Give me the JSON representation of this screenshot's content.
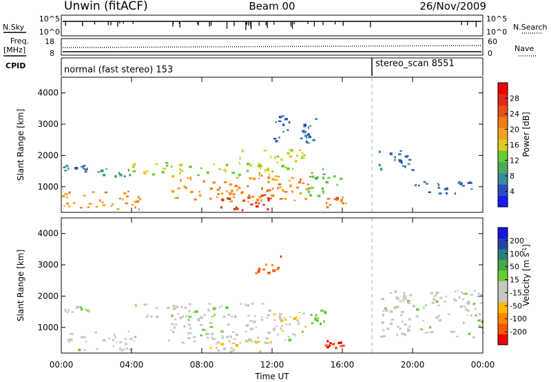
{
  "header": {
    "title": "Unwin (fitACF)",
    "beam": "Beam 00",
    "date": "26/Nov/2009"
  },
  "strip_labels": {
    "nsky": "N.Sky",
    "nsearch": "N.Search",
    "freq_line1": "Freq.",
    "freq_line2": "[MHz]",
    "nave": "Nave",
    "cpid": "CPID"
  },
  "strip_ticks": {
    "noise_left_top": "10^5",
    "noise_left_bottom": "10^0",
    "noise_right_top": "10^5",
    "noise_right_bottom": "10^0",
    "freq_left_top": "18",
    "freq_left_bottom": "8",
    "nave_right_top": "60",
    "nave_right_bottom": "0"
  },
  "cpid": {
    "segment1": "normal (fast stereo) 153",
    "segment2": "stereo_scan 8551"
  },
  "colors": {
    "power": [
      "#1a1aff",
      "#2a50b8",
      "#3a8a9a",
      "#4caa5c",
      "#66cc33",
      "#ddcc22",
      "#f5a020",
      "#f07a18",
      "#e8501a",
      "#e02a1a",
      "#ee0000"
    ],
    "velocity": [
      "#ee0000",
      "#ff5500",
      "#ff8800",
      "#ffbb00",
      "#c8c8c0",
      "#c8c8c0",
      "#66cc33",
      "#44aa44",
      "#2e7d7d",
      "#2244aa",
      "#1515dd"
    ],
    "grey": "#c8c8c0"
  },
  "chart_data": [
    {
      "type": "heatmap",
      "title": "",
      "xlabel": "",
      "ylabel": "Slant Range [km]",
      "xlim": [
        "00:00",
        "24:00"
      ],
      "ylim": [
        180,
        4500
      ],
      "y_ticks": [
        "1000",
        "2000",
        "3000",
        "4000"
      ],
      "colorbar": {
        "label": "Power [dB]",
        "range": [
          0,
          32
        ],
        "ticks": [
          "4",
          "8",
          "12",
          "16",
          "20",
          "24",
          "28"
        ]
      },
      "regions": [
        {
          "t0": 0.0,
          "t1": 4.5,
          "r0": 300,
          "r1": 900,
          "value": 20
        },
        {
          "t0": 0.0,
          "t1": 1.5,
          "r0": 1500,
          "r1": 1700,
          "value": 7
        },
        {
          "t0": 2.0,
          "t1": 4.0,
          "r0": 1350,
          "r1": 1600,
          "value": 8
        },
        {
          "t0": 4.0,
          "t1": 12.0,
          "r0": 1350,
          "r1": 1800,
          "value": 15
        },
        {
          "t0": 6.0,
          "t1": 14.0,
          "r0": 500,
          "r1": 1400,
          "value": 20
        },
        {
          "t0": 9.0,
          "t1": 12.0,
          "r0": 250,
          "r1": 800,
          "value": 27
        },
        {
          "t0": 10.0,
          "t1": 14.0,
          "r0": 1600,
          "r1": 2200,
          "value": 15
        },
        {
          "t0": 12.0,
          "t1": 14.5,
          "r0": 2400,
          "r1": 3300,
          "value": 6
        },
        {
          "t0": 14.0,
          "t1": 16.0,
          "r0": 700,
          "r1": 1600,
          "value": 12
        },
        {
          "t0": 15.0,
          "t1": 16.5,
          "r0": 250,
          "r1": 700,
          "value": 22
        },
        {
          "t0": 18.0,
          "t1": 20.0,
          "r0": 1500,
          "r1": 2200,
          "value": 6
        },
        {
          "t0": 20.0,
          "t1": 24.0,
          "r0": 800,
          "r1": 1200,
          "value": 6
        }
      ]
    },
    {
      "type": "heatmap",
      "title": "",
      "xlabel": "Time UT",
      "ylabel": "Slant Range [km]",
      "xlim": [
        "00:00",
        "24:00"
      ],
      "ylim": [
        180,
        4500
      ],
      "x_ticks": [
        "00:00",
        "04:00",
        "08:00",
        "12:00",
        "16:00",
        "20:00",
        "00:00"
      ],
      "y_ticks": [
        "1000",
        "2000",
        "3000",
        "4000"
      ],
      "colorbar": {
        "label": "Velocity [m s^-1]",
        "range": [
          -250,
          250
        ],
        "ticks": [
          "200",
          "100",
          "50",
          "15",
          "-15",
          "-50",
          "-100",
          "-200"
        ]
      },
      "regions": [
        {
          "t0": 0.0,
          "t1": 4.5,
          "r0": 300,
          "r1": 900,
          "value": 0
        },
        {
          "t0": 0.0,
          "t1": 1.5,
          "r0": 1500,
          "r1": 1700,
          "value": 0
        },
        {
          "t0": 4.0,
          "t1": 12.0,
          "r0": 1350,
          "r1": 1800,
          "value": 0
        },
        {
          "t0": 6.0,
          "t1": 14.0,
          "r0": 500,
          "r1": 1400,
          "value": 0
        },
        {
          "t0": 8.0,
          "t1": 12.0,
          "r0": 250,
          "r1": 700,
          "value": -70
        },
        {
          "t0": 12.0,
          "t1": 14.0,
          "r0": 900,
          "r1": 1500,
          "value": -80
        },
        {
          "t0": 11.0,
          "t1": 12.5,
          "r0": 2700,
          "r1": 3300,
          "value": -180
        },
        {
          "t0": 14.0,
          "t1": 15.0,
          "r0": 1000,
          "r1": 1600,
          "value": 60
        },
        {
          "t0": 15.0,
          "t1": 16.0,
          "r0": 350,
          "r1": 600,
          "value": -200
        },
        {
          "t0": 18.0,
          "t1": 24.0,
          "r0": 700,
          "r1": 2200,
          "value": 0
        }
      ]
    }
  ]
}
